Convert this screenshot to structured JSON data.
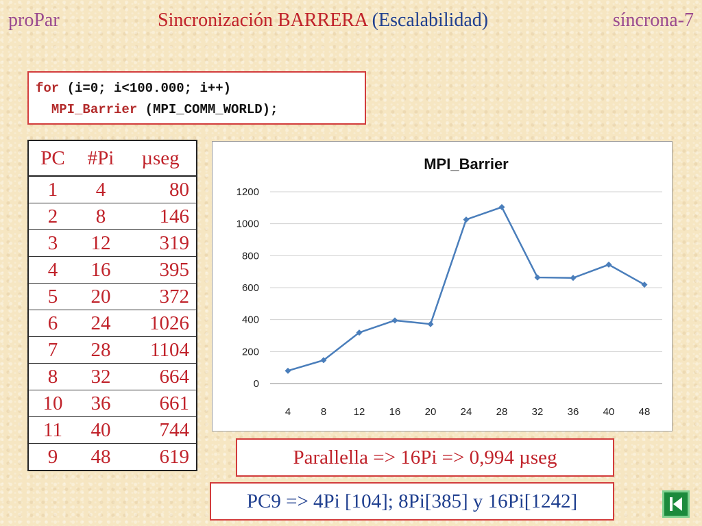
{
  "header": {
    "left": "proPar",
    "title_main": "Sincronización BARRERA ",
    "title_paren": "(Escalabilidad)",
    "right": "síncrona-7"
  },
  "code": {
    "line1_kw": "for",
    "line1_rest": " (i=0; i<100.000; i++)",
    "line2_indent": "  ",
    "line2_fn": "MPI_Barrier",
    "line2_rest": " (MPI_COMM_WORLD);"
  },
  "table": {
    "headers": [
      "PC",
      "#Pi",
      "µseg"
    ],
    "rows": [
      [
        "1",
        "4",
        "80"
      ],
      [
        "2",
        "8",
        "146"
      ],
      [
        "3",
        "12",
        "319"
      ],
      [
        "4",
        "16",
        "395"
      ],
      [
        "5",
        "20",
        "372"
      ],
      [
        "6",
        "24",
        "1026"
      ],
      [
        "7",
        "28",
        "1104"
      ],
      [
        "8",
        "32",
        "664"
      ],
      [
        "10",
        "36",
        "661"
      ],
      [
        "11",
        "40",
        "744"
      ],
      [
        "9",
        "48",
        "619"
      ]
    ]
  },
  "chart_data": {
    "type": "line",
    "title": "MPI_Barrier",
    "categories": [
      "4",
      "8",
      "12",
      "16",
      "20",
      "24",
      "28",
      "32",
      "36",
      "40",
      "48"
    ],
    "series": [
      {
        "values": [
          80,
          146,
          319,
          395,
          372,
          1026,
          1104,
          664,
          661,
          744,
          619
        ],
        "color": "#4a7ebb"
      }
    ],
    "yticks": [
      "0",
      "200",
      "400",
      "600",
      "800",
      "1000",
      "1200"
    ],
    "ylim": [
      0,
      1200
    ],
    "grid": true,
    "legend": "none"
  },
  "notes": {
    "parallella": "Parallella => 16Pi => 0,994 µseg",
    "pc9": "PC9 => 4Pi [104]; 8Pi[385] y 16Pi[1242]"
  },
  "colors": {
    "title_red": "#c0222a",
    "title_blue": "#1f3f8f",
    "header_purple": "#9a4a8f",
    "series_blue": "#4a7ebb",
    "nav_green": "#1c8a3c"
  },
  "nav": {
    "icon": "skip-to-first-icon"
  }
}
